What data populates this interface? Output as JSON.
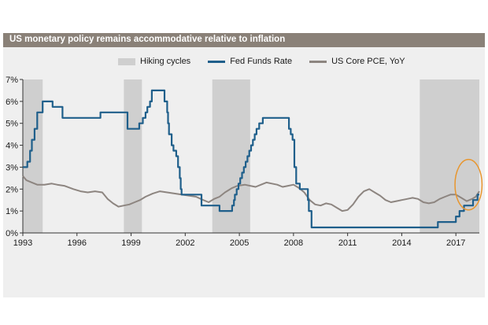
{
  "title": "US monetary policy remains accommodative relative to inflation",
  "colors": {
    "fed": "#1f5f8b",
    "pce": "#8d8580",
    "hiking": "#cfcfcf",
    "highlight": "#e8962e",
    "title_bar": "#8a8178"
  },
  "chart_data": {
    "type": "line",
    "title": "US monetary policy remains accommodative relative to inflation",
    "xlim": [
      1993.0,
      2018.3
    ],
    "ylim": [
      0,
      7
    ],
    "x_ticks": [
      {
        "value": 1993,
        "label": "1993"
      },
      {
        "value": 1996,
        "label": "1996"
      },
      {
        "value": 1999,
        "label": "1999"
      },
      {
        "value": 2002,
        "label": "2002"
      },
      {
        "value": 2005,
        "label": "2005"
      },
      {
        "value": 2008,
        "label": "2008"
      },
      {
        "value": 2011,
        "label": "2011"
      },
      {
        "value": 2014,
        "label": "2014"
      },
      {
        "value": 2017,
        "label": "2017"
      }
    ],
    "y_ticks": [
      {
        "value": 0,
        "label": "0%"
      },
      {
        "value": 1,
        "label": "1%"
      },
      {
        "value": 2,
        "label": "2%"
      },
      {
        "value": 3,
        "label": "3%"
      },
      {
        "value": 4,
        "label": "4%"
      },
      {
        "value": 5,
        "label": "5%"
      },
      {
        "value": 6,
        "label": "6%"
      },
      {
        "value": 7,
        "label": "7%"
      }
    ],
    "legend": {
      "position": "top",
      "items": [
        "Hiking cycles",
        "Fed Funds Rate",
        "US Core PCE, YoY"
      ]
    },
    "hiking_cycles": [
      {
        "start": 1993.0,
        "end": 1994.1
      },
      {
        "start": 1998.6,
        "end": 1999.6
      },
      {
        "start": 2003.5,
        "end": 2005.6
      },
      {
        "start": 2015.0,
        "end": 2018.3
      }
    ],
    "highlight_ellipse": {
      "x_center": 2017.7,
      "y_center": 2.2,
      "x_radius": 0.75,
      "y_radius": 1.15
    },
    "series": [
      {
        "name": "Fed Funds Rate",
        "type": "step",
        "points": [
          [
            1993.0,
            3.0
          ],
          [
            1993.25,
            3.25
          ],
          [
            1993.4,
            3.75
          ],
          [
            1993.5,
            4.25
          ],
          [
            1993.65,
            4.75
          ],
          [
            1993.8,
            5.5
          ],
          [
            1994.1,
            6.0
          ],
          [
            1994.6,
            6.0
          ],
          [
            1994.65,
            5.75
          ],
          [
            1995.1,
            5.75
          ],
          [
            1995.2,
            5.25
          ],
          [
            1997.2,
            5.25
          ],
          [
            1997.3,
            5.5
          ],
          [
            1998.7,
            5.5
          ],
          [
            1998.8,
            4.75
          ],
          [
            1999.3,
            4.75
          ],
          [
            1999.45,
            5.0
          ],
          [
            1999.65,
            5.25
          ],
          [
            1999.8,
            5.5
          ],
          [
            1999.9,
            5.75
          ],
          [
            2000.05,
            6.0
          ],
          [
            2000.15,
            6.5
          ],
          [
            2000.5,
            6.5
          ],
          [
            2000.8,
            6.5
          ],
          [
            2000.85,
            6.0
          ],
          [
            2001.0,
            5.5
          ],
          [
            2001.05,
            5.0
          ],
          [
            2001.1,
            4.5
          ],
          [
            2001.25,
            4.0
          ],
          [
            2001.35,
            3.75
          ],
          [
            2001.5,
            3.5
          ],
          [
            2001.6,
            3.0
          ],
          [
            2001.7,
            2.5
          ],
          [
            2001.75,
            2.0
          ],
          [
            2001.8,
            1.75
          ],
          [
            2002.85,
            1.75
          ],
          [
            2002.9,
            1.25
          ],
          [
            2003.8,
            1.25
          ],
          [
            2003.9,
            1.0
          ],
          [
            2004.55,
            1.0
          ],
          [
            2004.6,
            1.25
          ],
          [
            2004.7,
            1.5
          ],
          [
            2004.75,
            1.75
          ],
          [
            2004.85,
            2.0
          ],
          [
            2004.95,
            2.25
          ],
          [
            2005.05,
            2.5
          ],
          [
            2005.15,
            2.75
          ],
          [
            2005.25,
            3.0
          ],
          [
            2005.35,
            3.25
          ],
          [
            2005.45,
            3.5
          ],
          [
            2005.55,
            3.75
          ],
          [
            2005.65,
            4.0
          ],
          [
            2005.75,
            4.25
          ],
          [
            2005.85,
            4.5
          ],
          [
            2005.95,
            4.75
          ],
          [
            2006.1,
            5.0
          ],
          [
            2006.3,
            5.25
          ],
          [
            2007.7,
            5.25
          ],
          [
            2007.75,
            4.75
          ],
          [
            2007.85,
            4.5
          ],
          [
            2007.95,
            4.25
          ],
          [
            2008.05,
            3.0
          ],
          [
            2008.15,
            2.25
          ],
          [
            2008.35,
            2.0
          ],
          [
            2008.8,
            1.5
          ],
          [
            2008.85,
            1.0
          ],
          [
            2009.0,
            0.25
          ],
          [
            2015.95,
            0.25
          ],
          [
            2016.0,
            0.5
          ],
          [
            2016.95,
            0.5
          ],
          [
            2017.0,
            0.75
          ],
          [
            2017.2,
            1.0
          ],
          [
            2017.45,
            1.25
          ],
          [
            2017.95,
            1.5
          ],
          [
            2018.2,
            1.75
          ],
          [
            2018.3,
            1.75
          ]
        ]
      },
      {
        "name": "US Core PCE, YoY",
        "type": "line",
        "points": [
          [
            1993.0,
            2.6
          ],
          [
            1993.2,
            2.4
          ],
          [
            1993.5,
            2.3
          ],
          [
            1993.8,
            2.2
          ],
          [
            1994.2,
            2.2
          ],
          [
            1994.6,
            2.25
          ],
          [
            1994.9,
            2.2
          ],
          [
            1995.3,
            2.15
          ],
          [
            1995.8,
            2.0
          ],
          [
            1996.2,
            1.9
          ],
          [
            1996.6,
            1.85
          ],
          [
            1997.0,
            1.9
          ],
          [
            1997.4,
            1.85
          ],
          [
            1997.7,
            1.55
          ],
          [
            1998.0,
            1.35
          ],
          [
            1998.3,
            1.2
          ],
          [
            1998.6,
            1.25
          ],
          [
            1998.9,
            1.3
          ],
          [
            1999.2,
            1.4
          ],
          [
            1999.5,
            1.5
          ],
          [
            1999.8,
            1.65
          ],
          [
            2000.2,
            1.8
          ],
          [
            2000.6,
            1.9
          ],
          [
            2001.0,
            1.85
          ],
          [
            2001.4,
            1.8
          ],
          [
            2001.8,
            1.75
          ],
          [
            2002.2,
            1.7
          ],
          [
            2002.6,
            1.65
          ],
          [
            2003.0,
            1.5
          ],
          [
            2003.3,
            1.4
          ],
          [
            2003.6,
            1.55
          ],
          [
            2003.9,
            1.65
          ],
          [
            2004.2,
            1.85
          ],
          [
            2004.6,
            2.05
          ],
          [
            2004.9,
            2.15
          ],
          [
            2005.3,
            2.2
          ],
          [
            2005.6,
            2.15
          ],
          [
            2005.9,
            2.1
          ],
          [
            2006.2,
            2.2
          ],
          [
            2006.5,
            2.3
          ],
          [
            2006.8,
            2.25
          ],
          [
            2007.1,
            2.2
          ],
          [
            2007.4,
            2.1
          ],
          [
            2007.7,
            2.15
          ],
          [
            2008.0,
            2.2
          ],
          [
            2008.3,
            2.05
          ],
          [
            2008.6,
            1.85
          ],
          [
            2008.9,
            1.5
          ],
          [
            2009.2,
            1.3
          ],
          [
            2009.5,
            1.25
          ],
          [
            2009.8,
            1.35
          ],
          [
            2010.1,
            1.3
          ],
          [
            2010.4,
            1.15
          ],
          [
            2010.7,
            1.0
          ],
          [
            2011.0,
            1.05
          ],
          [
            2011.3,
            1.3
          ],
          [
            2011.6,
            1.65
          ],
          [
            2011.9,
            1.9
          ],
          [
            2012.2,
            2.0
          ],
          [
            2012.5,
            1.85
          ],
          [
            2012.8,
            1.7
          ],
          [
            2013.1,
            1.5
          ],
          [
            2013.4,
            1.4
          ],
          [
            2013.7,
            1.45
          ],
          [
            2014.0,
            1.5
          ],
          [
            2014.3,
            1.55
          ],
          [
            2014.6,
            1.6
          ],
          [
            2014.9,
            1.55
          ],
          [
            2015.2,
            1.4
          ],
          [
            2015.5,
            1.35
          ],
          [
            2015.8,
            1.4
          ],
          [
            2016.1,
            1.55
          ],
          [
            2016.4,
            1.65
          ],
          [
            2016.7,
            1.75
          ],
          [
            2017.0,
            1.75
          ],
          [
            2017.3,
            1.6
          ],
          [
            2017.6,
            1.45
          ],
          [
            2017.9,
            1.55
          ],
          [
            2018.1,
            1.65
          ],
          [
            2018.3,
            1.9
          ]
        ]
      }
    ]
  }
}
